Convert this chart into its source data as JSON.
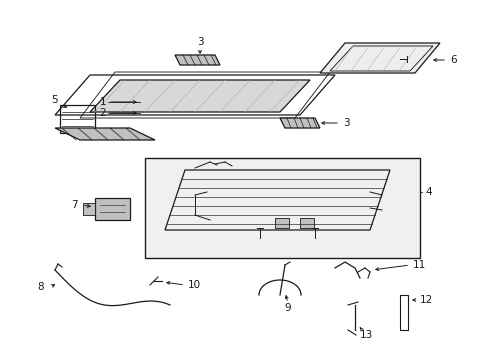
{
  "background_color": "#ffffff",
  "line_color": "#1a1a1a",
  "gray_fill": "#d8d8d8",
  "light_gray": "#eeeeee",
  "mid_gray": "#c0c0c0"
}
